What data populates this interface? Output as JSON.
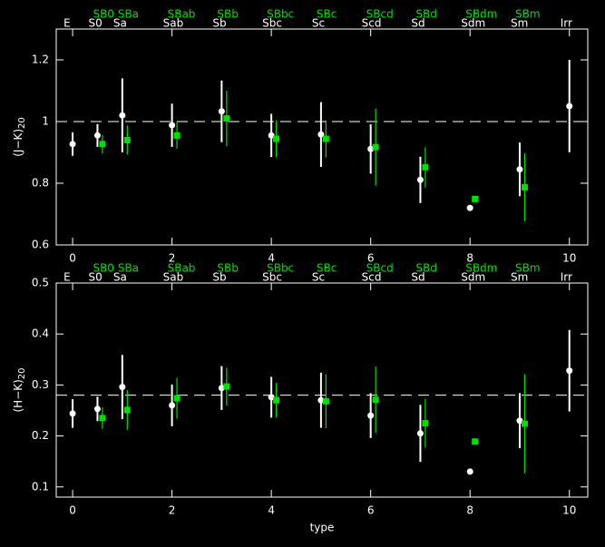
{
  "chart_data": [
    {
      "type": "scatter",
      "ylabel": "(J−K)",
      "ylabel_sub": "20",
      "xlim": [
        -0.33,
        10.37
      ],
      "ylim": [
        0.6,
        1.3
      ],
      "xticks": [
        0,
        2,
        4,
        6,
        8,
        10
      ],
      "yticks": [
        0.6,
        0.8,
        1,
        1.2
      ],
      "reference_line": 1,
      "type_ticks": [
        {
          "value": 0,
          "label": "E"
        },
        {
          "value": 0.5,
          "label": "S0"
        },
        {
          "value": 1,
          "label": "Sa"
        },
        {
          "value": 2,
          "label": "Sab"
        },
        {
          "value": 3,
          "label": "Sb"
        },
        {
          "value": 4,
          "label": "Sbc"
        },
        {
          "value": 5,
          "label": "Sc"
        },
        {
          "value": 6,
          "label": "Scd"
        },
        {
          "value": 7,
          "label": "Sd"
        },
        {
          "value": 8,
          "label": "Sdm"
        },
        {
          "value": 9,
          "label": "Sm"
        },
        {
          "value": 10,
          "label": "Irr"
        }
      ],
      "barred_type_ticks": [
        {
          "value": 0.5,
          "label": "SB0"
        },
        {
          "value": 1,
          "label": "SBa"
        },
        {
          "value": 2,
          "label": "SBab"
        },
        {
          "value": 3,
          "label": "SBb"
        },
        {
          "value": 4,
          "label": "SBbc"
        },
        {
          "value": 5,
          "label": "SBc"
        },
        {
          "value": 6,
          "label": "SBcd"
        },
        {
          "value": 7,
          "label": "SBd"
        },
        {
          "value": 8,
          "label": "SBdm"
        },
        {
          "value": 9,
          "label": "SBm"
        }
      ],
      "series": [
        {
          "color": "#ffffff",
          "marker": "circle",
          "x": [
            0,
            0.5,
            1,
            2,
            3,
            4,
            5,
            6,
            7,
            8,
            9,
            10
          ],
          "values": [
            0.927,
            0.955,
            1.02,
            0.988,
            1.033,
            0.955,
            0.958,
            0.911,
            0.811,
            0.72,
            0.845,
            1.05
          ],
          "errors": [
            0.038,
            0.037,
            0.12,
            0.07,
            0.1,
            0.07,
            0.105,
            0.08,
            0.075,
            0.005,
            0.087,
            0.15
          ]
        },
        {
          "color": "#00e000",
          "marker": "square",
          "x": [
            0.6,
            1.1,
            2.1,
            3.1,
            4.1,
            5.1,
            6.1,
            7.1,
            8.1,
            9.1
          ],
          "values": [
            0.927,
            0.94,
            0.955,
            1.01,
            0.944,
            0.944,
            0.917,
            0.852,
            0.749,
            0.787
          ],
          "errors": [
            0.03,
            0.047,
            0.043,
            0.09,
            0.06,
            0.06,
            0.125,
            0.065,
            0.003,
            0.11
          ]
        }
      ]
    },
    {
      "type": "scatter",
      "ylabel": "(H−K)",
      "ylabel_sub": "20",
      "xlabel": "type",
      "xlim": [
        -0.33,
        10.37
      ],
      "ylim": [
        0.08,
        0.5
      ],
      "xticks": [
        0,
        2,
        4,
        6,
        8,
        10
      ],
      "yticks": [
        0.1,
        0.2,
        0.3,
        0.4,
        0.5
      ],
      "reference_line": 0.28,
      "type_ticks": [
        {
          "value": 0,
          "label": "E"
        },
        {
          "value": 0.5,
          "label": "S0"
        },
        {
          "value": 1,
          "label": "Sa"
        },
        {
          "value": 2,
          "label": "Sab"
        },
        {
          "value": 3,
          "label": "Sb"
        },
        {
          "value": 4,
          "label": "Sbc"
        },
        {
          "value": 5,
          "label": "Sc"
        },
        {
          "value": 6,
          "label": "Scd"
        },
        {
          "value": 7,
          "label": "Sd"
        },
        {
          "value": 8,
          "label": "Sdm"
        },
        {
          "value": 9,
          "label": "Sm"
        },
        {
          "value": 10,
          "label": "Irr"
        }
      ],
      "barred_type_ticks": [
        {
          "value": 0.5,
          "label": "SB0"
        },
        {
          "value": 1,
          "label": "SBa"
        },
        {
          "value": 2,
          "label": "SBab"
        },
        {
          "value": 3,
          "label": "SBb"
        },
        {
          "value": 4,
          "label": "SBbc"
        },
        {
          "value": 5,
          "label": "SBc"
        },
        {
          "value": 6,
          "label": "SBcd"
        },
        {
          "value": 7,
          "label": "SBd"
        },
        {
          "value": 8,
          "label": "SBdm"
        },
        {
          "value": 9,
          "label": "SBm"
        }
      ],
      "series": [
        {
          "color": "#ffffff",
          "marker": "circle",
          "x": [
            0,
            0.5,
            1,
            2,
            3,
            4,
            5,
            6,
            7,
            8,
            9,
            10
          ],
          "values": [
            0.244,
            0.253,
            0.296,
            0.26,
            0.294,
            0.276,
            0.27,
            0.24,
            0.205,
            0.13,
            0.23,
            0.328
          ],
          "errors": [
            0.028,
            0.024,
            0.063,
            0.041,
            0.043,
            0.04,
            0.054,
            0.044,
            0.056,
            0.004,
            0.054,
            0.08
          ]
        },
        {
          "color": "#00e000",
          "marker": "square",
          "x": [
            0.6,
            1.1,
            2.1,
            3.1,
            4.1,
            5.1,
            6.1,
            7.1,
            8.1,
            9.1
          ],
          "values": [
            0.235,
            0.251,
            0.274,
            0.297,
            0.27,
            0.268,
            0.271,
            0.225,
            0.189,
            0.224
          ],
          "errors": [
            0.021,
            0.039,
            0.04,
            0.037,
            0.034,
            0.053,
            0.065,
            0.048,
            0.006,
            0.097
          ]
        }
      ]
    }
  ]
}
